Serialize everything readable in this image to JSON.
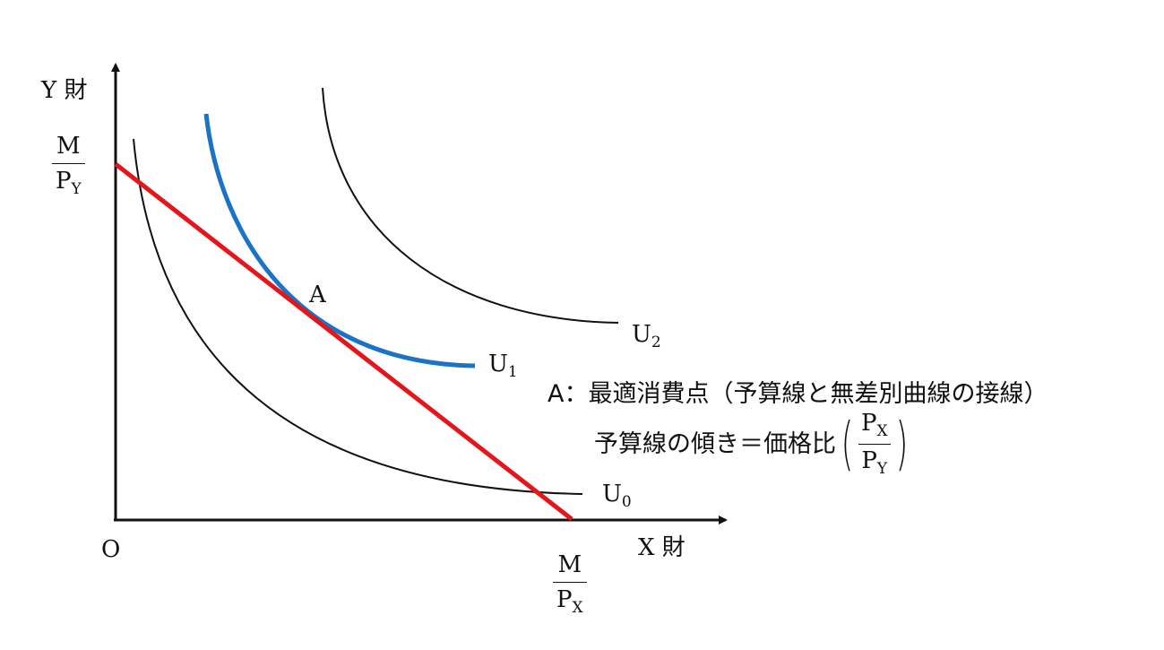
{
  "axes": {
    "y_label": {
      "text": "Y",
      "kanji": "財"
    },
    "x_label": {
      "text": "X",
      "kanji": "財"
    },
    "origin": "O"
  },
  "intercepts": {
    "y": {
      "num": "M",
      "den": "P",
      "den_sub": "Y"
    },
    "x": {
      "num": "M",
      "den": "P",
      "den_sub": "X"
    }
  },
  "curves": [
    {
      "name": "U",
      "sub": "0",
      "color": "#111111"
    },
    {
      "name": "U",
      "sub": "1",
      "color": "#1a73c5"
    },
    {
      "name": "U",
      "sub": "2",
      "color": "#111111"
    }
  ],
  "budget_line_color": "#e3161b",
  "point": "A",
  "legend": {
    "line1": "A：最適消費点（予算線と無差別曲線の接線）",
    "line2_prefix": "予算線の傾き＝価格比",
    "ratio": {
      "num": "P",
      "num_sub": "X",
      "den": "P",
      "den_sub": "Y"
    }
  }
}
